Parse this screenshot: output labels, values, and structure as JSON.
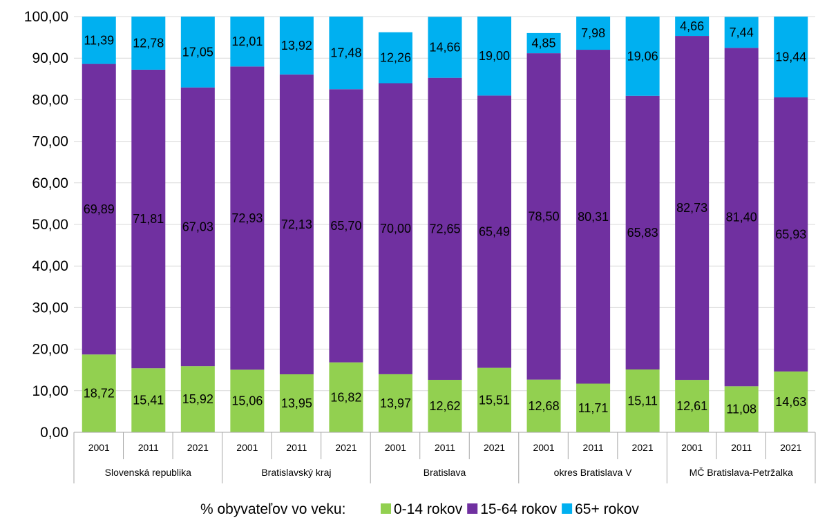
{
  "chart_data": {
    "type": "bar",
    "stacked": true,
    "title": "",
    "xlabel": "",
    "ylabel": "",
    "ylim": [
      0,
      100
    ],
    "yticks": [
      "0,00",
      "10,00",
      "20,00",
      "30,00",
      "40,00",
      "50,00",
      "60,00",
      "70,00",
      "80,00",
      "90,00",
      "100,00"
    ],
    "grid": true,
    "groups": [
      {
        "name": "Slovenská republika",
        "years": [
          "2001",
          "2011",
          "2021"
        ]
      },
      {
        "name": "Bratislavský kraj",
        "years": [
          "2001",
          "2011",
          "2021"
        ]
      },
      {
        "name": "Bratislava",
        "years": [
          "2001",
          "2011",
          "2021"
        ]
      },
      {
        "name": "okres Bratislava V",
        "years": [
          "2001",
          "2011",
          "2021"
        ]
      },
      {
        "name": "MČ Bratislava-Petržalka",
        "years": [
          "2001",
          "2011",
          "2021"
        ]
      }
    ],
    "series": [
      {
        "name": "0-14 rokov",
        "color": "#92D050",
        "values": [
          18.72,
          15.41,
          15.92,
          15.06,
          13.95,
          16.82,
          13.97,
          12.62,
          15.51,
          12.68,
          11.71,
          15.11,
          12.61,
          11.08,
          14.63
        ],
        "labels": [
          "18,72",
          "15,41",
          "15,92",
          "15,06",
          "13,95",
          "16,82",
          "13,97",
          "12,62",
          "15,51",
          "12,68",
          "11,71",
          "15,11",
          "12,61",
          "11,08",
          "14,63"
        ]
      },
      {
        "name": "15-64 rokov",
        "color": "#7030A0",
        "values": [
          69.89,
          71.81,
          67.03,
          72.93,
          72.13,
          65.7,
          70.0,
          72.65,
          65.49,
          78.5,
          80.31,
          65.83,
          82.73,
          81.4,
          65.93
        ],
        "labels": [
          "69,89",
          "71,81",
          "67,03",
          "72,93",
          "72,13",
          "65,70",
          "70,00",
          "72,65",
          "65,49",
          "78,50",
          "80,31",
          "65,83",
          "82,73",
          "81,40",
          "65,93"
        ]
      },
      {
        "name": "65+ rokov",
        "color": "#00B0F0",
        "values": [
          11.39,
          12.78,
          17.05,
          12.01,
          13.92,
          17.48,
          12.26,
          14.66,
          19.0,
          4.85,
          7.98,
          19.06,
          4.66,
          7.44,
          19.44
        ],
        "labels": [
          "11,39",
          "12,78",
          "17,05",
          "12,01",
          "13,92",
          "17,48",
          "12,26",
          "14,66",
          "19,00",
          "4,85",
          "7,98",
          "19,06",
          "4,66",
          "7,44",
          "19,44"
        ]
      }
    ],
    "legend": {
      "title": "% obyvateľov vo veku:",
      "position": "bottom"
    }
  }
}
